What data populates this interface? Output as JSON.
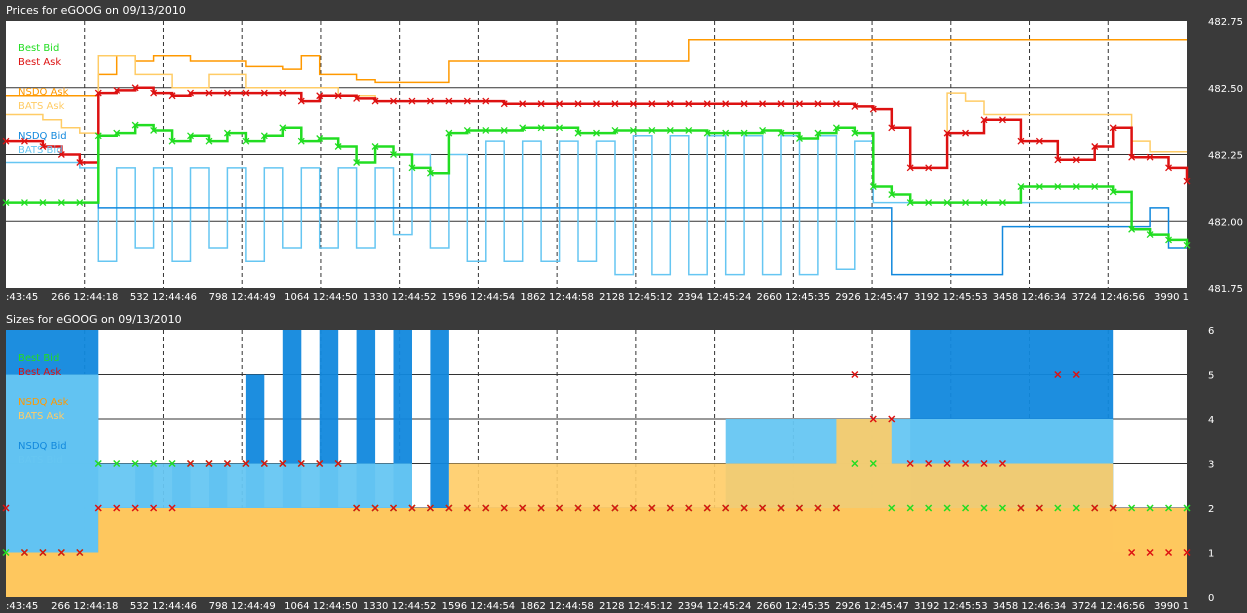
{
  "colors": {
    "best_bid": "#22dd22",
    "best_ask": "#dd1111",
    "nsdq_ask": "#ff9900",
    "bats_ask": "#ffcc66",
    "nsdq_bid": "#1188dd",
    "bats_bid": "#66c6f2",
    "background": "#ffffff",
    "frame": "#3a3a3a"
  },
  "chart_data": [
    {
      "type": "line",
      "title": "Prices for  eGOOG  on  09/13/2010",
      "xlabel": "",
      "ylabel": "",
      "ylim": [
        481.75,
        482.75
      ],
      "y_ticks": [
        "482.75",
        "482.50",
        "482.25",
        "482.00",
        "481.75"
      ],
      "x_ticks": [
        ":43:45",
        "266 12:44:18",
        "532 12:44:46",
        "798 12:44:49",
        "1064 12:44:50",
        "1330 12:44:52",
        "1596 12:44:54",
        "1862 12:44:58",
        "2128 12:45:12",
        "2394 12:45:24",
        "2660 12:45:35",
        "2926 12:45:47",
        "3192 12:45:53",
        "3458 12:46:34",
        "3724 12:46:56",
        "3990 1"
      ],
      "grid": true,
      "legend_position": "left",
      "series": [
        {
          "name": "Best Bid",
          "values": [
            482.07,
            482.07,
            482.07,
            482.07,
            482.07,
            482.32,
            482.33,
            482.36,
            482.34,
            482.3,
            482.32,
            482.3,
            482.33,
            482.3,
            482.32,
            482.35,
            482.3,
            482.31,
            482.28,
            482.22,
            482.28,
            482.25,
            482.2,
            482.18,
            482.33,
            482.34,
            482.34,
            482.34,
            482.35,
            482.35,
            482.35,
            482.33,
            482.33,
            482.34,
            482.34,
            482.34,
            482.34,
            482.34,
            482.33,
            482.33,
            482.33,
            482.34,
            482.33,
            482.31,
            482.33,
            482.35,
            482.33,
            482.13,
            482.1,
            482.07,
            482.07,
            482.07,
            482.07,
            482.07,
            482.07,
            482.13,
            482.13,
            482.13,
            482.13,
            482.13,
            482.11,
            481.97,
            481.95,
            481.93,
            481.91
          ]
        },
        {
          "name": "Best Ask",
          "values": [
            482.3,
            482.3,
            482.28,
            482.25,
            482.22,
            482.48,
            482.49,
            482.5,
            482.48,
            482.47,
            482.48,
            482.48,
            482.48,
            482.48,
            482.48,
            482.48,
            482.45,
            482.47,
            482.47,
            482.46,
            482.45,
            482.45,
            482.45,
            482.45,
            482.45,
            482.45,
            482.45,
            482.44,
            482.44,
            482.44,
            482.44,
            482.44,
            482.44,
            482.44,
            482.44,
            482.44,
            482.44,
            482.44,
            482.44,
            482.44,
            482.44,
            482.44,
            482.44,
            482.44,
            482.44,
            482.44,
            482.43,
            482.42,
            482.35,
            482.2,
            482.2,
            482.33,
            482.33,
            482.38,
            482.38,
            482.3,
            482.3,
            482.23,
            482.23,
            482.28,
            482.35,
            482.24,
            482.24,
            482.2,
            482.15
          ]
        },
        {
          "name": "NSDQ Ask",
          "values": [
            482.47,
            482.47,
            482.47,
            482.47,
            482.47,
            482.55,
            482.62,
            482.6,
            482.62,
            482.62,
            482.6,
            482.6,
            482.6,
            482.58,
            482.58,
            482.57,
            482.62,
            482.55,
            482.55,
            482.53,
            482.52,
            482.52,
            482.52,
            482.52,
            482.6,
            482.6,
            482.6,
            482.6,
            482.6,
            482.6,
            482.6,
            482.6,
            482.6,
            482.6,
            482.6,
            482.6,
            482.6,
            482.68,
            482.68,
            482.68,
            482.68,
            482.68,
            482.68,
            482.68,
            482.68,
            482.68,
            482.68,
            482.68,
            482.68,
            482.68,
            482.68,
            482.68,
            482.68,
            482.68,
            482.68,
            482.68,
            482.68,
            482.68,
            482.68,
            482.68,
            482.68,
            482.68,
            482.68,
            482.68,
            482.68
          ]
        },
        {
          "name": "BATS Ask",
          "values": [
            482.4,
            482.4,
            482.38,
            482.35,
            482.33,
            482.62,
            482.62,
            482.55,
            482.55,
            482.5,
            482.5,
            482.55,
            482.55,
            482.5,
            482.5,
            482.5,
            482.5,
            482.5,
            482.47,
            482.47,
            482.45,
            482.45,
            482.45,
            482.45,
            482.45,
            482.45,
            482.45,
            482.44,
            482.44,
            482.44,
            482.44,
            482.44,
            482.44,
            482.44,
            482.44,
            482.44,
            482.44,
            482.44,
            482.44,
            482.44,
            482.44,
            482.44,
            482.44,
            482.44,
            482.44,
            482.44,
            482.43,
            482.42,
            482.35,
            482.2,
            482.2,
            482.48,
            482.45,
            482.4,
            482.4,
            482.4,
            482.4,
            482.4,
            482.4,
            482.4,
            482.4,
            482.3,
            482.26,
            482.26,
            482.26
          ]
        },
        {
          "name": "NSDQ Bid",
          "values": [
            482.07,
            482.07,
            482.07,
            482.07,
            482.07,
            482.05,
            482.05,
            482.05,
            482.05,
            482.05,
            482.05,
            482.05,
            482.05,
            482.05,
            482.05,
            482.05,
            482.05,
            482.05,
            482.05,
            482.05,
            482.05,
            482.05,
            482.05,
            482.05,
            482.05,
            482.05,
            482.05,
            482.05,
            482.05,
            482.05,
            482.05,
            482.05,
            482.05,
            482.05,
            482.05,
            482.05,
            482.05,
            482.05,
            482.05,
            482.05,
            482.05,
            482.05,
            482.05,
            482.05,
            482.05,
            482.05,
            482.05,
            482.05,
            481.8,
            481.8,
            481.8,
            481.8,
            481.8,
            481.8,
            481.98,
            481.98,
            481.98,
            481.98,
            481.98,
            481.98,
            481.98,
            481.98,
            482.05,
            481.9,
            481.9
          ]
        },
        {
          "name": "BATS Bid",
          "values": [
            482.22,
            482.22,
            482.22,
            482.22,
            482.2,
            481.85,
            482.2,
            481.9,
            482.2,
            481.85,
            482.2,
            481.9,
            482.2,
            481.85,
            482.2,
            481.9,
            482.2,
            481.9,
            482.2,
            481.9,
            482.2,
            481.95,
            482.25,
            481.9,
            482.25,
            481.85,
            482.3,
            481.85,
            482.3,
            481.85,
            482.3,
            481.85,
            482.3,
            481.8,
            482.32,
            481.8,
            482.32,
            481.8,
            482.32,
            481.8,
            482.32,
            481.8,
            482.32,
            481.8,
            482.32,
            481.82,
            482.3,
            482.07,
            482.07,
            482.07,
            482.07,
            482.07,
            482.07,
            482.07,
            482.07,
            482.07,
            482.07,
            482.07,
            482.07,
            482.07,
            482.07,
            481.97,
            481.95,
            481.93,
            481.91
          ]
        }
      ]
    },
    {
      "type": "area",
      "title": "Sizes for  eGOOG  on  09/13/2010",
      "xlabel": "",
      "ylabel": "",
      "ylim": [
        0,
        6
      ],
      "y_ticks": [
        "6",
        "5",
        "4",
        "3",
        "2",
        "1",
        "0"
      ],
      "x_ticks": [
        ":43:45",
        "266 12:44:18",
        "532 12:44:46",
        "798 12:44:49",
        "1064 12:44:50",
        "1330 12:44:52",
        "1596 12:44:54",
        "1862 12:44:58",
        "2128 12:45:12",
        "2394 12:45:24",
        "2660 12:45:35",
        "2926 12:45:47",
        "3192 12:45:53",
        "3458 12:46:34",
        "3724 12:46:56",
        "3990 1"
      ],
      "grid": true,
      "legend_position": "left",
      "series": [
        {
          "name": "Best Bid",
          "values": [
            1,
            1,
            1,
            1,
            1,
            3,
            3,
            3,
            3,
            3,
            3,
            3,
            3,
            3,
            3,
            3,
            3,
            3,
            3,
            2,
            2,
            2,
            2,
            2,
            2,
            2,
            2,
            2,
            2,
            2,
            2,
            2,
            2,
            2,
            2,
            2,
            2,
            2,
            2,
            2,
            2,
            2,
            2,
            2,
            2,
            2,
            3,
            3,
            2,
            2,
            2,
            2,
            2,
            2,
            2,
            2,
            2,
            2,
            2,
            2,
            2,
            2,
            2,
            2,
            2
          ]
        },
        {
          "name": "Best Ask",
          "values": [
            2,
            1,
            1,
            1,
            1,
            2,
            2,
            2,
            2,
            2,
            3,
            3,
            3,
            3,
            3,
            3,
            3,
            3,
            3,
            2,
            2,
            2,
            2,
            2,
            2,
            2,
            2,
            2,
            2,
            2,
            2,
            2,
            2,
            2,
            2,
            2,
            2,
            2,
            2,
            2,
            2,
            2,
            2,
            2,
            2,
            2,
            5,
            4,
            4,
            3,
            3,
            3,
            3,
            3,
            3,
            2,
            2,
            5,
            5,
            2,
            2,
            1,
            1,
            1,
            1
          ]
        },
        {
          "name": "NSDQ Ask",
          "values": [
            1,
            1,
            1,
            1,
            1,
            2,
            2,
            2,
            2,
            2,
            2,
            2,
            2,
            2,
            2,
            2,
            2,
            2,
            2,
            2,
            2,
            2,
            2,
            2,
            2,
            2,
            2,
            2,
            2,
            2,
            2,
            2,
            2,
            2,
            2,
            2,
            2,
            2,
            2,
            2,
            2,
            2,
            2,
            2,
            2,
            2,
            2,
            2,
            2,
            2,
            2,
            2,
            2,
            2,
            2,
            2,
            2,
            2,
            2,
            2,
            2,
            2,
            2,
            2,
            2
          ]
        },
        {
          "name": "BATS Ask",
          "values": [
            1,
            1,
            1,
            1,
            1,
            2,
            2,
            2,
            2,
            2,
            2,
            2,
            2,
            2,
            2,
            2,
            2,
            2,
            2,
            2,
            2,
            2,
            2,
            2,
            3,
            3,
            3,
            3,
            3,
            3,
            3,
            3,
            3,
            3,
            3,
            3,
            3,
            3,
            3,
            3,
            3,
            3,
            3,
            3,
            3,
            4,
            4,
            4,
            3,
            3,
            3,
            3,
            3,
            3,
            3,
            3,
            3,
            3,
            3,
            3,
            2,
            2,
            2,
            2,
            2
          ]
        },
        {
          "name": "NSDQ Bid",
          "values": [
            6,
            6,
            6,
            6,
            6,
            2,
            2,
            3,
            2,
            3,
            2,
            3,
            2,
            5,
            2,
            6,
            2,
            6,
            2,
            6,
            2,
            6,
            2,
            6,
            2,
            2,
            2,
            2,
            2,
            2,
            2,
            2,
            2,
            2,
            2,
            2,
            2,
            2,
            2,
            2,
            2,
            2,
            2,
            2,
            2,
            2,
            2,
            2,
            2,
            6,
            6,
            6,
            6,
            6,
            6,
            6,
            6,
            6,
            6,
            6,
            1,
            1,
            1,
            1,
            1
          ]
        },
        {
          "name": "BATS Bid",
          "values": [
            5,
            5,
            5,
            5,
            5,
            3,
            3,
            3,
            3,
            3,
            3,
            3,
            3,
            3,
            3,
            3,
            3,
            3,
            3,
            3,
            3,
            3,
            2,
            2,
            2,
            2,
            2,
            2,
            2,
            2,
            2,
            2,
            2,
            2,
            2,
            2,
            2,
            2,
            2,
            4,
            4,
            4,
            4,
            4,
            4,
            4,
            4,
            4,
            4,
            4,
            4,
            4,
            4,
            4,
            4,
            4,
            4,
            4,
            4,
            4,
            2,
            2,
            2,
            2,
            2
          ]
        }
      ]
    }
  ]
}
